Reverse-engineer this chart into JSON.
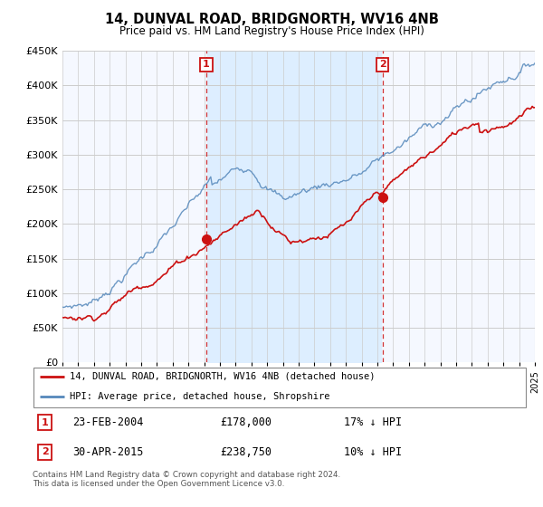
{
  "title": "14, DUNVAL ROAD, BRIDGNORTH, WV16 4NB",
  "subtitle": "Price paid vs. HM Land Registry's House Price Index (HPI)",
  "hpi_label": "HPI: Average price, detached house, Shropshire",
  "price_label": "14, DUNVAL ROAD, BRIDGNORTH, WV16 4NB (detached house)",
  "footer": "Contains HM Land Registry data © Crown copyright and database right 2024.\nThis data is licensed under the Open Government Licence v3.0.",
  "ylim": [
    0,
    450000
  ],
  "yticks": [
    0,
    50000,
    100000,
    150000,
    200000,
    250000,
    300000,
    350000,
    400000,
    450000
  ],
  "price_color": "#cc1111",
  "hpi_color": "#5588bb",
  "shade_color": "#ddeeff",
  "t1_year": 2004.14,
  "t2_year": 2015.33,
  "t1_price": 178000,
  "t2_price": 238750,
  "xmin": 1995,
  "xmax": 2025,
  "background_color": "#ffffff",
  "plot_bg": "#f5f8ff"
}
